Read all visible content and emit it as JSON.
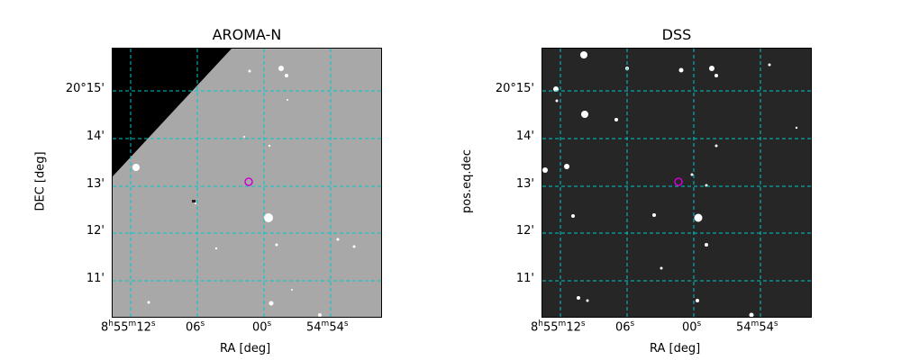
{
  "figure": {
    "left_panel": {
      "title": "AROMA-N",
      "xlabel": "RA [deg]",
      "ylabel": "DEC [deg]"
    },
    "right_panel": {
      "title": "DSS",
      "xlabel": "RA [deg]",
      "ylabel": "pos.eq.dec"
    },
    "ra_ticks": [
      {
        "h": "8",
        "hu": "h",
        "m": "55",
        "mu": "m",
        "s": "12",
        "su": "s"
      },
      {
        "s": "06",
        "su": "s"
      },
      {
        "s": "00",
        "su": "s"
      },
      {
        "m": "54",
        "mu": "m",
        "s": "54",
        "su": "s"
      }
    ],
    "dec_ticks": [
      "20°15'",
      "14'",
      "13'",
      "12'",
      "11'"
    ],
    "grid_color": "#00c8c8",
    "target_marker_color": "#d000d0"
  }
}
